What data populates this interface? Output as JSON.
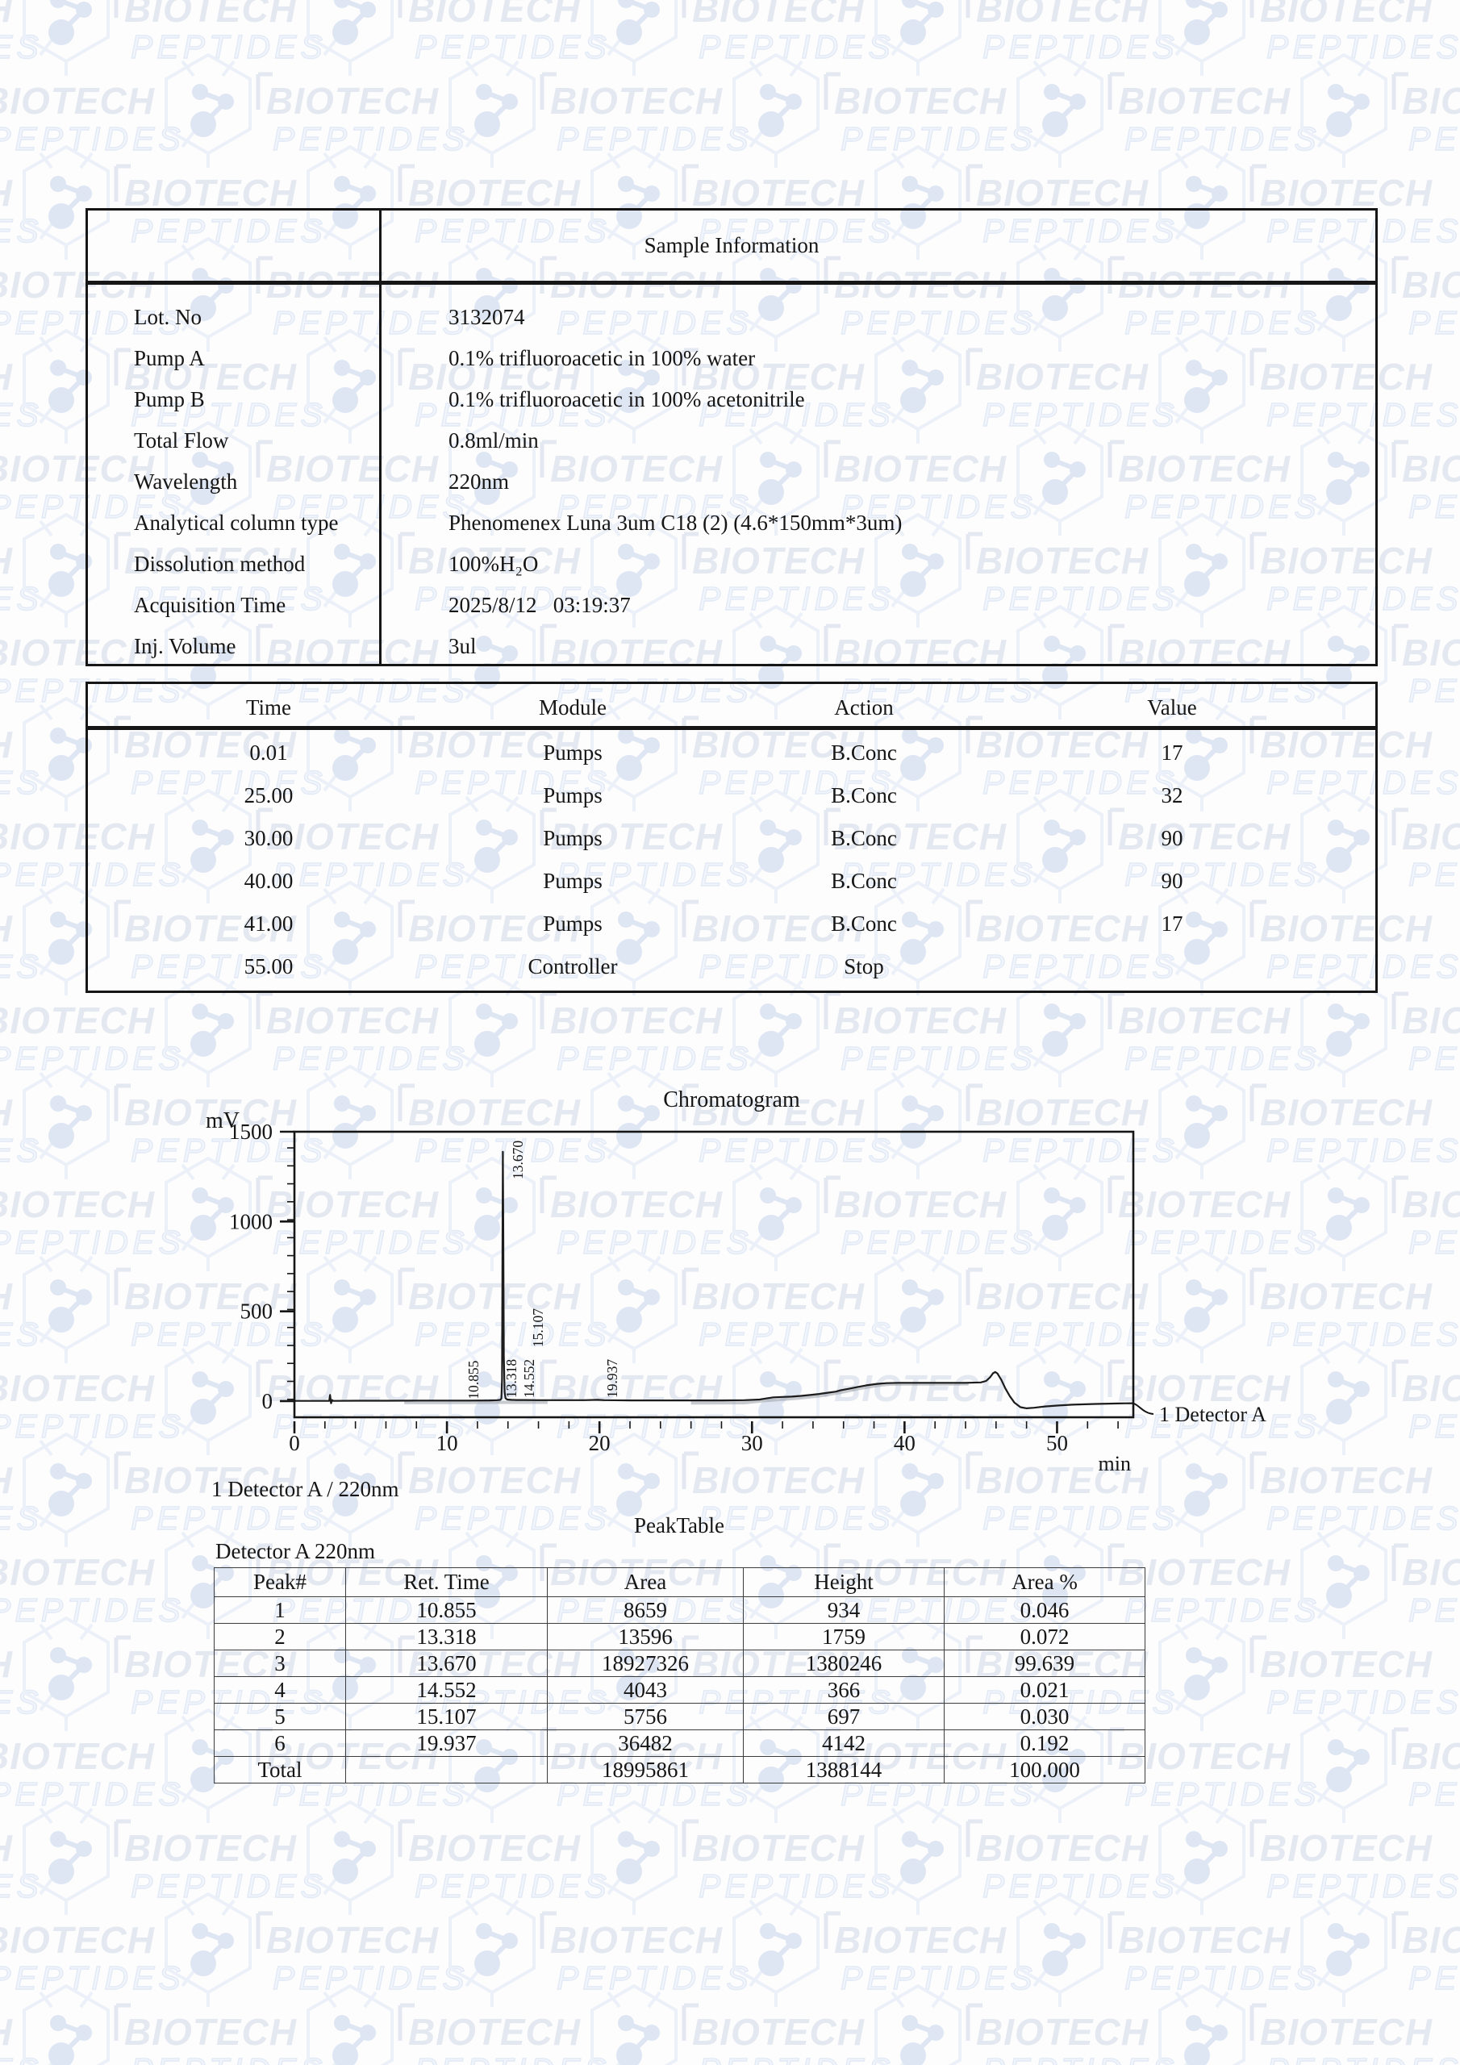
{
  "watermark": {
    "line1": "BIOTECH",
    "line2": "PEPTIDES"
  },
  "sample_info": {
    "title": "Sample Information",
    "rows": [
      {
        "label": "Lot. No",
        "value": "3132074"
      },
      {
        "label": "Pump A",
        "value": "0.1% trifluoroacetic in 100% water"
      },
      {
        "label": "Pump B",
        "value": "0.1% trifluoroacetic in 100% acetonitrile"
      },
      {
        "label": "Total Flow",
        "value": "0.8ml/min"
      },
      {
        "label": "Wavelength",
        "value": "220nm"
      },
      {
        "label": "Analytical column type",
        "value": "Phenomenex Luna 3um C18 (2) (4.6*150mm*3um)"
      },
      {
        "label": "Dissolution method",
        "value": "100%H₂O"
      },
      {
        "label": "Acquisition Time",
        "value": "2025/8/12   03:19:37"
      },
      {
        "label": "Inj. Volume",
        "value": "3ul"
      }
    ]
  },
  "program_table": {
    "headers": [
      "Time",
      "Module",
      "Action",
      "Value"
    ],
    "rows": [
      [
        "0.01",
        "Pumps",
        "B.Conc",
        "17"
      ],
      [
        "25.00",
        "Pumps",
        "B.Conc",
        "32"
      ],
      [
        "30.00",
        "Pumps",
        "B.Conc",
        "90"
      ],
      [
        "40.00",
        "Pumps",
        "B.Conc",
        "90"
      ],
      [
        "41.00",
        "Pumps",
        "B.Conc",
        "17"
      ],
      [
        "55.00",
        "Controller",
        "Stop",
        ""
      ]
    ]
  },
  "chart_data": {
    "type": "line",
    "title": "Chromatogram",
    "y_unit": "mV",
    "x_unit": "min",
    "detector_label": "1 Detector A",
    "channel_label": "1 Detector A / 220nm",
    "xlim": [
      0,
      55
    ],
    "ylim": [
      -90,
      1500
    ],
    "x_major_ticks": [
      0,
      10,
      20,
      30,
      40,
      50
    ],
    "x_minor_step": 2,
    "y_major_ticks": [
      0,
      500,
      1000,
      1500
    ],
    "y_minor_step": 100,
    "grid": false,
    "series": [
      {
        "name": "Detector A 220nm",
        "points": [
          [
            0,
            1
          ],
          [
            1.5,
            1
          ],
          [
            2.28,
            1
          ],
          [
            2.34,
            34
          ],
          [
            2.4,
            -12
          ],
          [
            2.47,
            6
          ],
          [
            2.55,
            1
          ],
          [
            4,
            2
          ],
          [
            6,
            2
          ],
          [
            8,
            3
          ],
          [
            10,
            3
          ],
          [
            11.5,
            3
          ],
          [
            12.8,
            4
          ],
          [
            13.3,
            5
          ],
          [
            13.5,
            7
          ],
          [
            13.57,
            15
          ],
          [
            13.61,
            120
          ],
          [
            13.64,
            800
          ],
          [
            13.665,
            1388
          ],
          [
            13.69,
            1000
          ],
          [
            13.73,
            250
          ],
          [
            13.78,
            50
          ],
          [
            13.84,
            16
          ],
          [
            13.95,
            9
          ],
          [
            14.2,
            7
          ],
          [
            14.55,
            6
          ],
          [
            15.1,
            6
          ],
          [
            16,
            5
          ],
          [
            17.5,
            5
          ],
          [
            19,
            5
          ],
          [
            19.9,
            7
          ],
          [
            20.3,
            5
          ],
          [
            22,
            4
          ],
          [
            24,
            4
          ],
          [
            26,
            4
          ],
          [
            28,
            4
          ],
          [
            29.5,
            5
          ],
          [
            30.5,
            9
          ],
          [
            31.0,
            16
          ],
          [
            31.4,
            21
          ],
          [
            32.0,
            23
          ],
          [
            32.6,
            25
          ],
          [
            33.2,
            29
          ],
          [
            33.8,
            34
          ],
          [
            34.4,
            40
          ],
          [
            35.0,
            47
          ],
          [
            35.5,
            53
          ],
          [
            35.8,
            60
          ],
          [
            36.3,
            68
          ],
          [
            36.9,
            78
          ],
          [
            37.5,
            88
          ],
          [
            38.2,
            96
          ],
          [
            38.8,
            100
          ],
          [
            39.6,
            102
          ],
          [
            41,
            102
          ],
          [
            42.5,
            102
          ],
          [
            44,
            102
          ],
          [
            45.0,
            104
          ],
          [
            45.35,
            112
          ],
          [
            45.6,
            132
          ],
          [
            45.8,
            155
          ],
          [
            45.95,
            162
          ],
          [
            46.1,
            153
          ],
          [
            46.35,
            118
          ],
          [
            46.6,
            72
          ],
          [
            46.9,
            28
          ],
          [
            47.2,
            -8
          ],
          [
            47.6,
            -34
          ],
          [
            48.0,
            -40
          ],
          [
            48.5,
            -37
          ],
          [
            49.2,
            -30
          ],
          [
            50,
            -25
          ],
          [
            51,
            -20
          ],
          [
            52.5,
            -16
          ],
          [
            54,
            -13
          ],
          [
            55,
            -12
          ]
        ]
      }
    ],
    "baseline_shadows": [
      {
        "points": [
          [
            7.2,
            -8
          ],
          [
            10,
            -8
          ],
          [
            13,
            -7
          ],
          [
            14.5,
            -7
          ],
          [
            16.6,
            -7
          ]
        ]
      },
      {
        "points": [
          [
            26,
            -10
          ],
          [
            29.5,
            -9
          ],
          [
            31,
            4
          ],
          [
            33,
            16
          ],
          [
            34.5,
            30
          ],
          [
            35.8,
            48
          ],
          [
            37,
            70
          ],
          [
            38.3,
            88
          ],
          [
            39,
            94
          ],
          [
            40.5,
            95
          ],
          [
            42.5,
            95
          ],
          [
            44.2,
            96
          ]
        ]
      }
    ],
    "peak_labels": [
      {
        "label": "10.855",
        "t": 12.06,
        "base_mv": 10
      },
      {
        "label": "13.318",
        "t": 14.54,
        "base_mv": 18
      },
      {
        "label": "13.670",
        "t": 14.97,
        "base_mv": 1235
      },
      {
        "label": "14.552",
        "t": 15.71,
        "base_mv": 18
      },
      {
        "label": "15.107",
        "t": 16.29,
        "base_mv": 300
      },
      {
        "label": "19.937",
        "t": 21.15,
        "base_mv": 18
      }
    ]
  },
  "peak_table": {
    "title": "PeakTable",
    "subtitle": "Detector A 220nm",
    "headers": [
      "Peak#",
      "Ret. Time",
      "Area",
      "Height",
      "Area %"
    ],
    "rows": [
      [
        "1",
        "10.855",
        "8659",
        "934",
        "0.046"
      ],
      [
        "2",
        "13.318",
        "13596",
        "1759",
        "0.072"
      ],
      [
        "3",
        "13.670",
        "18927326",
        "1380246",
        "99.639"
      ],
      [
        "4",
        "14.552",
        "4043",
        "366",
        "0.021"
      ],
      [
        "5",
        "15.107",
        "5756",
        "697",
        "0.030"
      ],
      [
        "6",
        "19.937",
        "36482",
        "4142",
        "0.192"
      ],
      [
        "Total",
        "",
        "18995861",
        "1388144",
        "100.000"
      ]
    ]
  }
}
